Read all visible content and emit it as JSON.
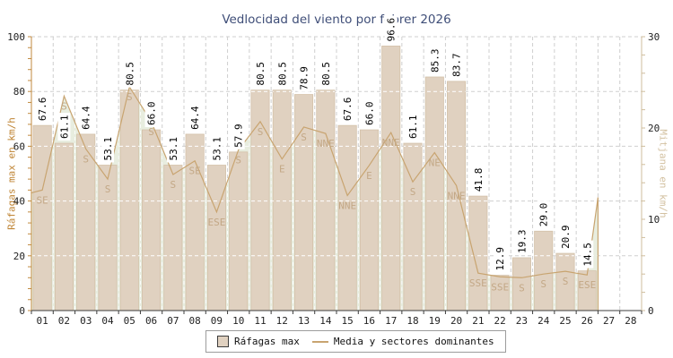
{
  "title": "Vedlocidad del viento por febrer 2026",
  "legend": {
    "items": [
      {
        "label": "Ráfagas max",
        "type": "box"
      },
      {
        "label": "Media y sectores dominantes",
        "type": "line"
      }
    ],
    "position": "bottom"
  },
  "chart_data": {
    "type": "bar",
    "categories": [
      "01",
      "02",
      "03",
      "04",
      "05",
      "06",
      "07",
      "08",
      "09",
      "10",
      "11",
      "12",
      "13",
      "14",
      "15",
      "16",
      "17",
      "18",
      "19",
      "20",
      "21",
      "22",
      "23",
      "24",
      "25",
      "26",
      "27",
      "28"
    ],
    "series": [
      {
        "name": "Ráfagas max",
        "type": "bar",
        "axis": "left",
        "unit": "km/h",
        "values": [
          67.6,
          61.1,
          64.4,
          53.1,
          80.5,
          66.0,
          53.1,
          64.4,
          53.1,
          57.9,
          80.5,
          80.5,
          78.9,
          80.5,
          67.6,
          66.0,
          96.6,
          61.1,
          85.3,
          83.7,
          41.8,
          12.9,
          19.3,
          29.0,
          20.9,
          14.5,
          null,
          null
        ],
        "value_labels": [
          "67.6",
          "61.1",
          "64.4",
          "53.1",
          "80.5",
          "66.0",
          "53.1",
          "64.4",
          "53.1",
          "57.9",
          "80.5",
          "80.5",
          "78.9",
          "80.5",
          "67.6",
          "66.0",
          "96.6",
          "61.1",
          "85.3",
          "83.7",
          "41.8",
          "12.9",
          "19.3",
          "29.0",
          "20.9",
          "14.5"
        ]
      },
      {
        "name": "Media y sectores dominantes",
        "type": "area",
        "axis": "right",
        "unit": "km/h",
        "values": [
          13.2,
          23.5,
          17.7,
          14.4,
          24.5,
          20.7,
          14.9,
          16.4,
          10.8,
          17.6,
          20.7,
          16.6,
          20.1,
          19.4,
          12.6,
          15.9,
          19.5,
          14.1,
          17.3,
          13.7,
          4.1,
          3.7,
          3.6,
          4.0,
          4.3,
          3.9,
          null,
          null
        ],
        "edge_start_value": 12.9,
        "edge_end_value": 12.4,
        "sectors": [
          "SE",
          "S",
          "S",
          "S",
          "S",
          "S",
          "S",
          "SE",
          "ESE",
          "S",
          "S",
          "E",
          "S",
          "NNE",
          "NNE",
          "E",
          "NNE",
          "S",
          "NE",
          "NNE",
          "SSE",
          "SSE",
          "S",
          "S",
          "S",
          "ESE"
        ]
      }
    ],
    "left_axis": {
      "label": "Ráfagas max en km/h",
      "min": 0,
      "max": 100,
      "major_step": 20,
      "minor_step": 4,
      "tick_labels": [
        "0",
        "20",
        "40",
        "60",
        "80",
        "100"
      ]
    },
    "right_axis": {
      "label": "Mitjana en km/h",
      "min": 0,
      "max": 30,
      "major_step": 10,
      "minor_step": 2,
      "tick_labels": [
        "0",
        "10",
        "20",
        "30"
      ]
    },
    "grid": true,
    "legend_position": "bottom"
  },
  "colors": {
    "title": "#3F4E78",
    "bar_fill": "#E0D1C0",
    "bar_stroke": "#D2BFA6",
    "area_fill": "rgba(150,175,110,0.22)",
    "area_line": "#C8A470",
    "sector_label": "#C3A886",
    "grid_gray": "#CFCFCF",
    "grid_white": "#FFFFFF",
    "left_axis": "#C18A3F",
    "right_axis": "#CFBD9C",
    "bottom_axis": "#3c3c3c",
    "tick_label": "#222222",
    "value_label": "#000000",
    "value_chip": "#FFFFFF"
  }
}
